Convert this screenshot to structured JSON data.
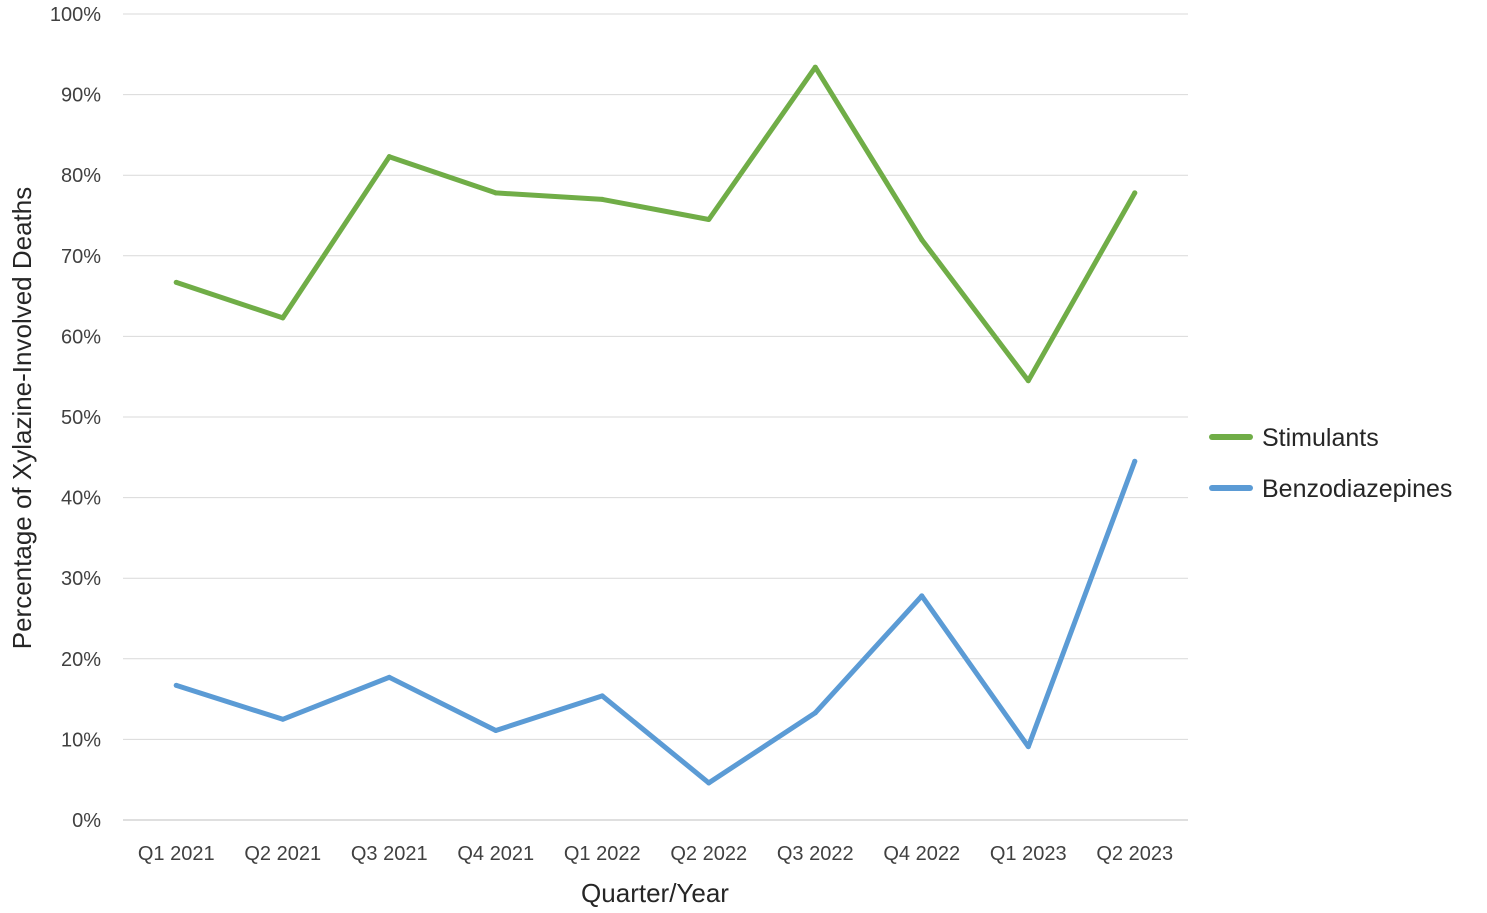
{
  "chart_data": {
    "type": "line",
    "title": "",
    "xlabel": "Quarter/Year",
    "ylabel": "Percentage of Xylazine-Involved Deaths",
    "categories": [
      "Q1 2021",
      "Q2 2021",
      "Q3 2021",
      "Q4 2021",
      "Q1 2022",
      "Q2 2022",
      "Q3 2022",
      "Q4 2022",
      "Q1 2023",
      "Q2 2023"
    ],
    "series": [
      {
        "name": "Stimulants",
        "color": "#70ad47",
        "values": [
          66.7,
          62.3,
          82.3,
          77.8,
          77.0,
          74.5,
          93.4,
          72.0,
          54.5,
          77.8
        ]
      },
      {
        "name": "Benzodiazepines",
        "color": "#5b9bd5",
        "values": [
          16.7,
          12.5,
          17.7,
          11.1,
          15.4,
          4.6,
          13.3,
          27.8,
          9.1,
          44.5
        ]
      }
    ],
    "ylim": [
      0,
      100
    ],
    "yticks": [
      "0%",
      "10%",
      "20%",
      "30%",
      "40%",
      "50%",
      "60%",
      "70%",
      "80%",
      "90%",
      "100%"
    ],
    "grid": true,
    "legend_position": "right"
  }
}
